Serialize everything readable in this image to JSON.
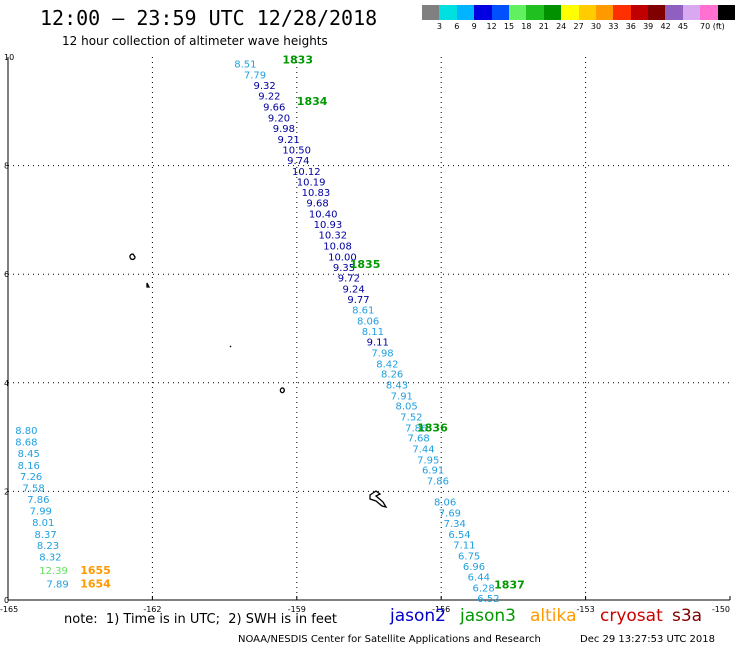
{
  "title": "12:00 – 23:59 UTC 12/28/2018",
  "subtitle": "12 hour collection of altimeter wave heights",
  "colorbar": {
    "colors": [
      "#808080",
      "#00e0e0",
      "#00b4ff",
      "#0000e0",
      "#0050ff",
      "#60f060",
      "#20c020",
      "#009000",
      "#ffff00",
      "#ffcc00",
      "#ff9900",
      "#ff3000",
      "#c00000",
      "#800000",
      "#9060c0",
      "#d8a8f0",
      "#ff70d0",
      "#000000"
    ],
    "labels": [
      "3",
      "6",
      "9",
      "12",
      "15",
      "18",
      "21",
      "24",
      "27",
      "30",
      "33",
      "36",
      "39",
      "42",
      "45",
      "70 (ft)"
    ]
  },
  "note": "note:  1) Time is in UTC;  2) SWH is in feet",
  "satellites": [
    {
      "name": "jason2",
      "color": "#0000cc"
    },
    {
      "name": "jason3",
      "color": "#009900"
    },
    {
      "name": "altika",
      "color": "#ff9900"
    },
    {
      "name": "cryosat",
      "color": "#cc0000"
    },
    {
      "name": "s3a",
      "color": "#800000"
    }
  ],
  "credit": "NOAA/NESDIS Center for Satellite Applications and Research",
  "timestamp": "Dec 29 13:27:53 UTC 2018",
  "chart_data": {
    "type": "scatter",
    "xlim": [
      -165,
      -150
    ],
    "ylim": [
      0,
      10
    ],
    "x_ticks": [
      "-165",
      "-162",
      "-159",
      "-156",
      "-153",
      "-150"
    ],
    "y_ticks": [
      "0",
      "2",
      "4",
      "6",
      "8",
      "10"
    ],
    "grid": true,
    "series": [
      {
        "name": "jason3",
        "points": [
          {
            "x": -160.3,
            "y": 9.88,
            "label": "8.51",
            "color": "#20a0e0"
          },
          {
            "x": -160.1,
            "y": 9.68,
            "label": "7.79",
            "color": "#20a0e0"
          },
          {
            "x": -159.9,
            "y": 9.48,
            "label": "9.32",
            "color": "#0000a0"
          },
          {
            "x": -159.8,
            "y": 9.29,
            "label": "9.22",
            "color": "#0000a0"
          },
          {
            "x": -159.7,
            "y": 9.09,
            "label": "9.66",
            "color": "#0000a0"
          },
          {
            "x": -159.6,
            "y": 8.89,
            "label": "9.20",
            "color": "#0000a0"
          },
          {
            "x": -159.5,
            "y": 8.69,
            "label": "9.98",
            "color": "#0000a0"
          },
          {
            "x": -159.4,
            "y": 8.49,
            "label": "9.21",
            "color": "#0000a0"
          },
          {
            "x": -159.3,
            "y": 8.3,
            "label": "10.50",
            "color": "#0000a0"
          },
          {
            "x": -159.2,
            "y": 8.1,
            "label": "9.74",
            "color": "#0000a0"
          },
          {
            "x": -159.1,
            "y": 7.9,
            "label": "10.12",
            "color": "#0000a0"
          },
          {
            "x": -159.0,
            "y": 7.71,
            "label": "10.19",
            "color": "#0000a0"
          },
          {
            "x": -158.9,
            "y": 7.51,
            "label": "10.83",
            "color": "#0000a0"
          },
          {
            "x": -158.8,
            "y": 7.32,
            "label": "9.68",
            "color": "#0000a0"
          },
          {
            "x": -158.75,
            "y": 7.12,
            "label": "10.40",
            "color": "#0000a0"
          },
          {
            "x": -158.65,
            "y": 6.92,
            "label": "10.93",
            "color": "#0000a0"
          },
          {
            "x": -158.55,
            "y": 6.73,
            "label": "10.32",
            "color": "#0000a0"
          },
          {
            "x": -158.45,
            "y": 6.53,
            "label": "10.08",
            "color": "#0000a0"
          },
          {
            "x": -158.35,
            "y": 6.33,
            "label": "10.00",
            "color": "#0000a0"
          },
          {
            "x": -158.25,
            "y": 6.13,
            "label": "9.35",
            "color": "#0000a0"
          },
          {
            "x": -158.15,
            "y": 5.94,
            "label": "9.72",
            "color": "#0000a0"
          },
          {
            "x": -158.05,
            "y": 5.74,
            "label": "9.24",
            "color": "#0000a0"
          },
          {
            "x": -157.95,
            "y": 5.54,
            "label": "9.77",
            "color": "#0000a0"
          },
          {
            "x": -157.85,
            "y": 5.35,
            "label": "8.61",
            "color": "#20a0e0"
          },
          {
            "x": -157.75,
            "y": 5.15,
            "label": "8.06",
            "color": "#20a0e0"
          },
          {
            "x": -157.65,
            "y": 4.95,
            "label": "8.11",
            "color": "#20a0e0"
          },
          {
            "x": -157.55,
            "y": 4.76,
            "label": "9.11",
            "color": "#0000a0"
          },
          {
            "x": -157.45,
            "y": 4.56,
            "label": "7.98",
            "color": "#20a0e0"
          },
          {
            "x": -157.35,
            "y": 4.36,
            "label": "8.42",
            "color": "#20a0e0"
          },
          {
            "x": -157.25,
            "y": 4.17,
            "label": "8.26",
            "color": "#20a0e0"
          },
          {
            "x": -157.15,
            "y": 3.97,
            "label": "8.43",
            "color": "#20a0e0"
          },
          {
            "x": -157.05,
            "y": 3.77,
            "label": "7.91",
            "color": "#20a0e0"
          },
          {
            "x": -156.95,
            "y": 3.58,
            "label": "8.05",
            "color": "#20a0e0"
          },
          {
            "x": -156.85,
            "y": 3.38,
            "label": "7.52",
            "color": "#20a0e0"
          },
          {
            "x": -156.75,
            "y": 3.18,
            "label": "7.86",
            "color": "#20a0e0"
          },
          {
            "x": -156.7,
            "y": 2.99,
            "label": "7.68",
            "color": "#20a0e0"
          },
          {
            "x": -156.6,
            "y": 2.79,
            "label": "7.44",
            "color": "#20a0e0"
          },
          {
            "x": -156.5,
            "y": 2.59,
            "label": "7.95",
            "color": "#20a0e0"
          },
          {
            "x": -156.4,
            "y": 2.4,
            "label": "6.91",
            "color": "#20a0e0"
          },
          {
            "x": -156.3,
            "y": 2.2,
            "label": "7.86",
            "color": "#20a0e0"
          },
          {
            "x": -156.15,
            "y": 1.81,
            "label": "8.06",
            "color": "#20a0e0"
          },
          {
            "x": -156.05,
            "y": 1.61,
            "label": "7.69",
            "color": "#20a0e0"
          },
          {
            "x": -155.95,
            "y": 1.42,
            "label": "7.34",
            "color": "#20a0e0"
          },
          {
            "x": -155.85,
            "y": 1.22,
            "label": "6.54",
            "color": "#20a0e0"
          },
          {
            "x": -155.75,
            "y": 1.02,
            "label": "7.11",
            "color": "#20a0e0"
          },
          {
            "x": -155.65,
            "y": 0.82,
            "label": "6.75",
            "color": "#20a0e0"
          },
          {
            "x": -155.55,
            "y": 0.63,
            "label": "6.96",
            "color": "#20a0e0"
          },
          {
            "x": -155.45,
            "y": 0.43,
            "label": "6.44",
            "color": "#20a0e0"
          },
          {
            "x": -155.35,
            "y": 0.23,
            "label": "6.28",
            "color": "#20a0e0"
          },
          {
            "x": -155.25,
            "y": 0.04,
            "label": "6.52",
            "color": "#20a0e0"
          }
        ],
        "time_labels": [
          {
            "x": -159.3,
            "y": 9.95,
            "label": "1833"
          },
          {
            "x": -159.0,
            "y": 9.19,
            "label": "1834"
          },
          {
            "x": -157.9,
            "y": 6.19,
            "label": "1835"
          },
          {
            "x": -156.5,
            "y": 3.18,
            "label": "1836"
          },
          {
            "x": -154.9,
            "y": 0.29,
            "label": "1837"
          }
        ]
      },
      {
        "name": "altika",
        "points": [
          {
            "x": -164.85,
            "y": 3.13,
            "label": "8.80",
            "color": "#20a0e0"
          },
          {
            "x": -164.85,
            "y": 2.92,
            "label": "8.68",
            "color": "#20a0e0"
          },
          {
            "x": -164.8,
            "y": 2.71,
            "label": "8.45",
            "color": "#20a0e0"
          },
          {
            "x": -164.8,
            "y": 2.49,
            "label": "8.16",
            "color": "#20a0e0"
          },
          {
            "x": -164.75,
            "y": 2.28,
            "label": "7.26",
            "color": "#20a0e0"
          },
          {
            "x": -164.7,
            "y": 2.07,
            "label": "7.58",
            "color": "#20a0e0"
          },
          {
            "x": -164.6,
            "y": 1.86,
            "label": "7.86",
            "color": "#20a0e0"
          },
          {
            "x": -164.55,
            "y": 1.65,
            "label": "7.99",
            "color": "#20a0e0"
          },
          {
            "x": -164.5,
            "y": 1.44,
            "label": "8.01",
            "color": "#20a0e0"
          },
          {
            "x": -164.45,
            "y": 1.22,
            "label": "8.37",
            "color": "#20a0e0"
          },
          {
            "x": -164.4,
            "y": 1.01,
            "label": "8.23",
            "color": "#20a0e0"
          },
          {
            "x": -164.35,
            "y": 0.8,
            "label": "8.32",
            "color": "#20a0e0"
          },
          {
            "x": -164.35,
            "y": 0.55,
            "label": "12.39",
            "color": "#60e060"
          },
          {
            "x": -164.2,
            "y": 0.3,
            "label": "7.89",
            "color": "#20a0e0"
          }
        ],
        "time_labels": [
          {
            "x": -163.5,
            "y": 0.55,
            "label": "1655"
          },
          {
            "x": -163.5,
            "y": 0.3,
            "label": "1654"
          }
        ]
      }
    ]
  }
}
